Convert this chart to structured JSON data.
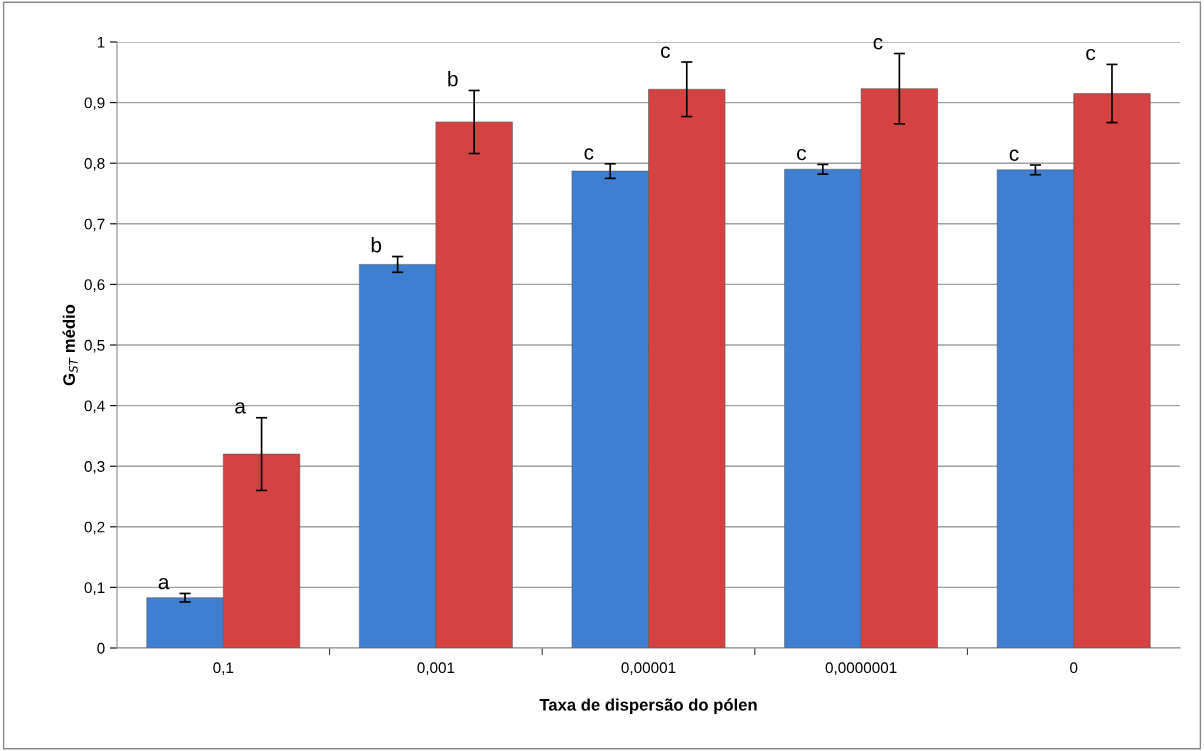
{
  "chart_data": {
    "type": "bar",
    "xlabel": "Taxa de dispersão do pólen",
    "ylabel": "G$_{ST}$ médio",
    "categories": [
      "0,1",
      "0,001",
      "0,00001",
      "0,0000001",
      "0"
    ],
    "series": [
      {
        "color": "#3f7fd2",
        "values": [
          0.083,
          0.633,
          0.787,
          0.79,
          0.789
        ],
        "errors": [
          0.007,
          0.013,
          0.012,
          0.008,
          0.008
        ]
      },
      {
        "color": "#d44242",
        "values": [
          0.32,
          0.868,
          0.922,
          0.923,
          0.915
        ],
        "errors": [
          0.06,
          0.052,
          0.045,
          0.058,
          0.048
        ]
      }
    ],
    "annotations": [
      {
        "text": "a",
        "x": "0,1",
        "y": 0.083
      },
      {
        "text": "a",
        "x": "0,1",
        "y": 0.32
      },
      {
        "text": "b",
        "x": "0,001",
        "y": 0.633
      },
      {
        "text": "b",
        "x": "0,001",
        "y": 0.868
      },
      {
        "text": "c",
        "x": "0,00001",
        "y": 0.787
      },
      {
        "text": "c",
        "x": "0,00001",
        "y": 0.922
      },
      {
        "text": "c",
        "x": "0,0000001",
        "y": 0.79
      },
      {
        "text": "c",
        "x": "0,0000001",
        "y": 0.923
      },
      {
        "text": "c",
        "x": "0",
        "y": 0.789
      },
      {
        "text": "c",
        "x": "0",
        "y": 0.915
      }
    ],
    "ylim": [
      0,
      1
    ],
    "yticks": [
      {
        "value": 0,
        "label": "0"
      },
      {
        "value": 0.1,
        "label": "0,1"
      },
      {
        "value": 0.2,
        "label": "0,2"
      },
      {
        "value": 0.3,
        "label": "0,3"
      },
      {
        "value": 0.4,
        "label": "0,4"
      },
      {
        "value": 0.5,
        "label": "0,5"
      },
      {
        "value": 0.6,
        "label": "0,6"
      },
      {
        "value": 0.7,
        "label": "0,7"
      },
      {
        "value": 0.8,
        "label": "0,8"
      },
      {
        "value": 0.9,
        "label": "0,9"
      },
      {
        "value": 1,
        "label": "1"
      }
    ],
    "grid": "y",
    "legend": false
  }
}
